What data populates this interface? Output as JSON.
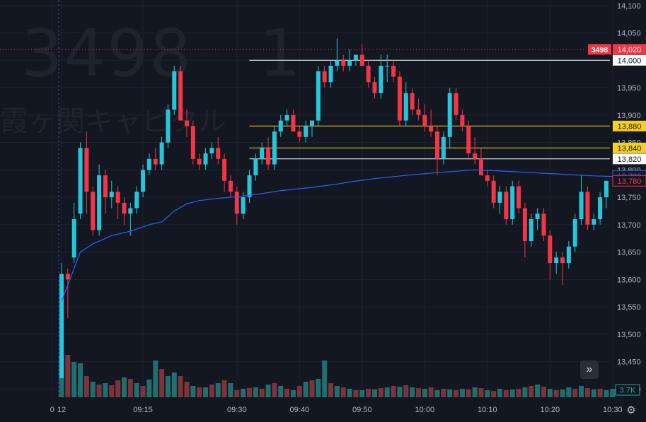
{
  "watermark": {
    "symbol": "3498　1",
    "name": "霞ヶ関キャピタル"
  },
  "controls": {
    "scroll_label": "»",
    "settings_icon": "gear-icon"
  },
  "colors": {
    "up": "#26c6da",
    "down": "#f23645",
    "vwap": "#2962ff",
    "vol_up": "#1f6f6f",
    "vol_down": "#7d3339"
  },
  "chart_data": {
    "type": "candlestick",
    "x_ticks": [
      {
        "label": "0",
        "i": -1.5
      },
      {
        "label": "12",
        "i": 0
      },
      {
        "label": "09:15",
        "i": 13
      },
      {
        "label": "09:30",
        "i": 28
      },
      {
        "label": "09:40",
        "i": 38
      },
      {
        "label": "09:50",
        "i": 48
      },
      {
        "label": "10:00",
        "i": 58
      },
      {
        "label": "10:10",
        "i": 68
      },
      {
        "label": "10:20",
        "i": 78
      },
      {
        "label": "10:30",
        "i": 88
      }
    ],
    "y_ticks": [
      13400,
      13450,
      13500,
      13550,
      13600,
      13650,
      13700,
      13750,
      13800,
      13850,
      13900,
      13950,
      14000,
      14050,
      14100
    ],
    "ylim": [
      13385,
      14110
    ],
    "candles": [
      [
        13420,
        13630,
        13420,
        13610
      ],
      [
        13610,
        13620,
        13530,
        13600
      ],
      [
        13640,
        13740,
        13630,
        13710
      ],
      [
        13720,
        13850,
        13710,
        13840
      ],
      [
        13840,
        13870,
        13720,
        13760
      ],
      [
        13760,
        13770,
        13680,
        13690
      ],
      [
        13690,
        13810,
        13680,
        13790
      ],
      [
        13790,
        13800,
        13720,
        13750
      ],
      [
        13750,
        13780,
        13730,
        13760
      ],
      [
        13760,
        13770,
        13710,
        13740
      ],
      [
        13740,
        13750,
        13700,
        13720
      ],
      [
        13720,
        13740,
        13680,
        13730
      ],
      [
        13730,
        13770,
        13720,
        13760
      ],
      [
        13760,
        13810,
        13750,
        13800
      ],
      [
        13800,
        13830,
        13790,
        13820
      ],
      [
        13820,
        13840,
        13800,
        13810
      ],
      [
        13810,
        13860,
        13800,
        13850
      ],
      [
        13850,
        13920,
        13840,
        13910
      ],
      [
        13910,
        13990,
        13900,
        13980
      ],
      [
        13980,
        13990,
        13890,
        13890
      ],
      [
        13890,
        13910,
        13860,
        13880
      ],
      [
        13880,
        13890,
        13810,
        13820
      ],
      [
        13820,
        13830,
        13800,
        13810
      ],
      [
        13810,
        13840,
        13800,
        13830
      ],
      [
        13830,
        13850,
        13820,
        13840
      ],
      [
        13840,
        13860,
        13810,
        13820
      ],
      [
        13820,
        13830,
        13760,
        13780
      ],
      [
        13780,
        13790,
        13750,
        13760
      ],
      [
        13760,
        13770,
        13700,
        13720
      ],
      [
        13720,
        13760,
        13710,
        13750
      ],
      [
        13750,
        13800,
        13740,
        13790
      ],
      [
        13790,
        13830,
        13780,
        13820
      ],
      [
        13820,
        13850,
        13810,
        13840
      ],
      [
        13840,
        13860,
        13800,
        13810
      ],
      [
        13810,
        13880,
        13800,
        13870
      ],
      [
        13870,
        13900,
        13860,
        13890
      ],
      [
        13890,
        13910,
        13880,
        13900
      ],
      [
        13900,
        13910,
        13870,
        13870
      ],
      [
        13870,
        13880,
        13850,
        13860
      ],
      [
        13860,
        13890,
        13850,
        13880
      ],
      [
        13880,
        13890,
        13860,
        13890
      ],
      [
        13890,
        13990,
        13880,
        13980
      ],
      [
        13980,
        13990,
        13950,
        13960
      ],
      [
        13960,
        14000,
        13950,
        13990
      ],
      [
        13990,
        14040,
        13980,
        14000
      ],
      [
        14000,
        14010,
        13980,
        13990
      ],
      [
        13990,
        14020,
        13980,
        14000
      ],
      [
        14000,
        14010,
        13990,
        14010
      ],
      [
        14010,
        14030,
        13990,
        13990
      ],
      [
        13990,
        14000,
        13950,
        13960
      ],
      [
        13960,
        13970,
        13930,
        13940
      ],
      [
        13940,
        14010,
        13930,
        13990
      ],
      [
        13990,
        14010,
        13960,
        13990
      ],
      [
        13990,
        14000,
        13960,
        13970
      ],
      [
        13970,
        13980,
        13880,
        13890
      ],
      [
        13890,
        13960,
        13880,
        13940
      ],
      [
        13940,
        13950,
        13900,
        13910
      ],
      [
        13910,
        13930,
        13890,
        13900
      ],
      [
        13900,
        13920,
        13870,
        13880
      ],
      [
        13880,
        13910,
        13860,
        13870
      ],
      [
        13870,
        13880,
        13790,
        13820
      ],
      [
        13820,
        13870,
        13810,
        13860
      ],
      [
        13860,
        13950,
        13840,
        13940
      ],
      [
        13940,
        13950,
        13890,
        13900
      ],
      [
        13900,
        13910,
        13870,
        13880
      ],
      [
        13880,
        13890,
        13820,
        13830
      ],
      [
        13830,
        13860,
        13810,
        13820
      ],
      [
        13820,
        13840,
        13790,
        13790
      ],
      [
        13790,
        13800,
        13770,
        13780
      ],
      [
        13780,
        13790,
        13730,
        13740
      ],
      [
        13740,
        13770,
        13720,
        13760
      ],
      [
        13760,
        13770,
        13700,
        13710
      ],
      [
        13710,
        13780,
        13700,
        13770
      ],
      [
        13770,
        13780,
        13720,
        13730
      ],
      [
        13730,
        13740,
        13640,
        13670
      ],
      [
        13670,
        13720,
        13660,
        13710
      ],
      [
        13710,
        13730,
        13690,
        13720
      ],
      [
        13720,
        13730,
        13670,
        13680
      ],
      [
        13680,
        13690,
        13600,
        13630
      ],
      [
        13630,
        13650,
        13610,
        13640
      ],
      [
        13640,
        13650,
        13590,
        13630
      ],
      [
        13630,
        13670,
        13620,
        13660
      ],
      [
        13660,
        13720,
        13650,
        13710
      ],
      [
        13710,
        13790,
        13700,
        13760
      ],
      [
        13760,
        13770,
        13690,
        13700
      ],
      [
        13700,
        13720,
        13690,
        13710
      ],
      [
        13710,
        13760,
        13700,
        13750
      ],
      [
        13750,
        13780,
        13730,
        13780
      ]
    ],
    "vwap": [
      [
        0,
        13560
      ],
      [
        1,
        13590
      ],
      [
        2,
        13620
      ],
      [
        3,
        13650
      ],
      [
        5,
        13665
      ],
      [
        8,
        13680
      ],
      [
        11,
        13688
      ],
      [
        14,
        13700
      ],
      [
        16,
        13705
      ],
      [
        18,
        13725
      ],
      [
        20,
        13738
      ],
      [
        22,
        13744
      ],
      [
        25,
        13748
      ],
      [
        28,
        13751
      ],
      [
        31,
        13755
      ],
      [
        35,
        13762
      ],
      [
        40,
        13768
      ],
      [
        44,
        13774
      ],
      [
        46,
        13778
      ],
      [
        50,
        13784
      ],
      [
        55,
        13790
      ],
      [
        60,
        13795
      ],
      [
        66,
        13800
      ],
      [
        70,
        13798
      ],
      [
        75,
        13795
      ],
      [
        80,
        13792
      ],
      [
        85,
        13789
      ],
      [
        88,
        13788
      ]
    ],
    "volumes": [
      [
        0,
        "up",
        58
      ],
      [
        1,
        "down",
        60
      ],
      [
        2,
        "up",
        50
      ],
      [
        3,
        "up",
        48
      ],
      [
        4,
        "down",
        30
      ],
      [
        5,
        "up",
        22
      ],
      [
        6,
        "down",
        18
      ],
      [
        7,
        "up",
        20
      ],
      [
        8,
        "down",
        17
      ],
      [
        9,
        "down",
        24
      ],
      [
        10,
        "up",
        28
      ],
      [
        11,
        "down",
        26
      ],
      [
        12,
        "up",
        20
      ],
      [
        13,
        "down",
        16
      ],
      [
        14,
        "up",
        25
      ],
      [
        15,
        "up",
        52
      ],
      [
        16,
        "down",
        40
      ],
      [
        17,
        "up",
        30
      ],
      [
        18,
        "up",
        35
      ],
      [
        19,
        "down",
        30
      ],
      [
        20,
        "down",
        22
      ],
      [
        21,
        "up",
        16
      ],
      [
        22,
        "down",
        14
      ],
      [
        23,
        "up",
        14
      ],
      [
        24,
        "down",
        18
      ],
      [
        25,
        "up",
        20
      ],
      [
        26,
        "down",
        24
      ],
      [
        27,
        "up",
        20
      ],
      [
        28,
        "down",
        10
      ],
      [
        29,
        "up",
        12
      ],
      [
        30,
        "down",
        13
      ],
      [
        31,
        "up",
        14
      ],
      [
        32,
        "down",
        12
      ],
      [
        33,
        "up",
        18
      ],
      [
        34,
        "down",
        20
      ],
      [
        35,
        "up",
        16
      ],
      [
        36,
        "down",
        12
      ],
      [
        37,
        "up",
        10
      ],
      [
        38,
        "down",
        16
      ],
      [
        39,
        "up",
        22
      ],
      [
        40,
        "down",
        24
      ],
      [
        41,
        "up",
        26
      ],
      [
        42,
        "up",
        52
      ],
      [
        43,
        "down",
        20
      ],
      [
        44,
        "up",
        16
      ],
      [
        45,
        "down",
        14
      ],
      [
        46,
        "up",
        12
      ],
      [
        47,
        "down",
        10
      ],
      [
        48,
        "up",
        10
      ],
      [
        49,
        "down",
        12
      ],
      [
        50,
        "up",
        11
      ],
      [
        51,
        "down",
        13
      ],
      [
        52,
        "up",
        14
      ],
      [
        53,
        "down",
        16
      ],
      [
        54,
        "up",
        15
      ],
      [
        55,
        "down",
        17
      ],
      [
        56,
        "up",
        14
      ],
      [
        57,
        "down",
        13
      ],
      [
        58,
        "up",
        12
      ],
      [
        59,
        "down",
        14
      ],
      [
        60,
        "up",
        10
      ],
      [
        61,
        "down",
        12
      ],
      [
        62,
        "up",
        11
      ],
      [
        63,
        "down",
        10
      ],
      [
        64,
        "up",
        12
      ],
      [
        65,
        "down",
        11
      ],
      [
        66,
        "up",
        14
      ],
      [
        67,
        "down",
        13
      ],
      [
        68,
        "up",
        10
      ],
      [
        69,
        "down",
        9
      ],
      [
        70,
        "up",
        12
      ],
      [
        71,
        "down",
        10
      ],
      [
        72,
        "up",
        11
      ],
      [
        73,
        "down",
        12
      ],
      [
        74,
        "up",
        14
      ],
      [
        75,
        "down",
        16
      ],
      [
        76,
        "up",
        18
      ],
      [
        77,
        "down",
        15
      ],
      [
        78,
        "up",
        12
      ],
      [
        79,
        "down",
        10
      ],
      [
        80,
        "up",
        11
      ],
      [
        81,
        "up",
        14
      ],
      [
        82,
        "down",
        12
      ],
      [
        83,
        "up",
        16
      ],
      [
        84,
        "down",
        13
      ],
      [
        85,
        "up",
        11
      ],
      [
        86,
        "down",
        12
      ],
      [
        87,
        "up",
        10
      ],
      [
        88,
        "up",
        12
      ]
    ],
    "price_lines": [
      {
        "value": 14000,
        "color": "#ffffff",
        "label_bg": "#ffffff",
        "label_fg": "#131722",
        "text": "14,000"
      },
      {
        "value": 13880,
        "color": "#f5d020",
        "label_bg": "#f5d020",
        "label_fg": "#131722",
        "text": "13,880"
      },
      {
        "value": 13840,
        "color": "#f5d020",
        "label_bg": "#f5d020",
        "label_fg": "#131722",
        "text": "13,840"
      },
      {
        "value": 13820,
        "color": "#ffffff",
        "label_bg": "#ffffff",
        "label_fg": "#131722",
        "text": "13,820"
      }
    ],
    "current": {
      "value": 14020,
      "symbol": "3498",
      "text": "14,020"
    },
    "vwap_label": {
      "value": 13789,
      "text": "13,789"
    },
    "last_price": {
      "value": 13780,
      "text": "13,780"
    },
    "volume_label": "3.7K",
    "grid": true
  }
}
